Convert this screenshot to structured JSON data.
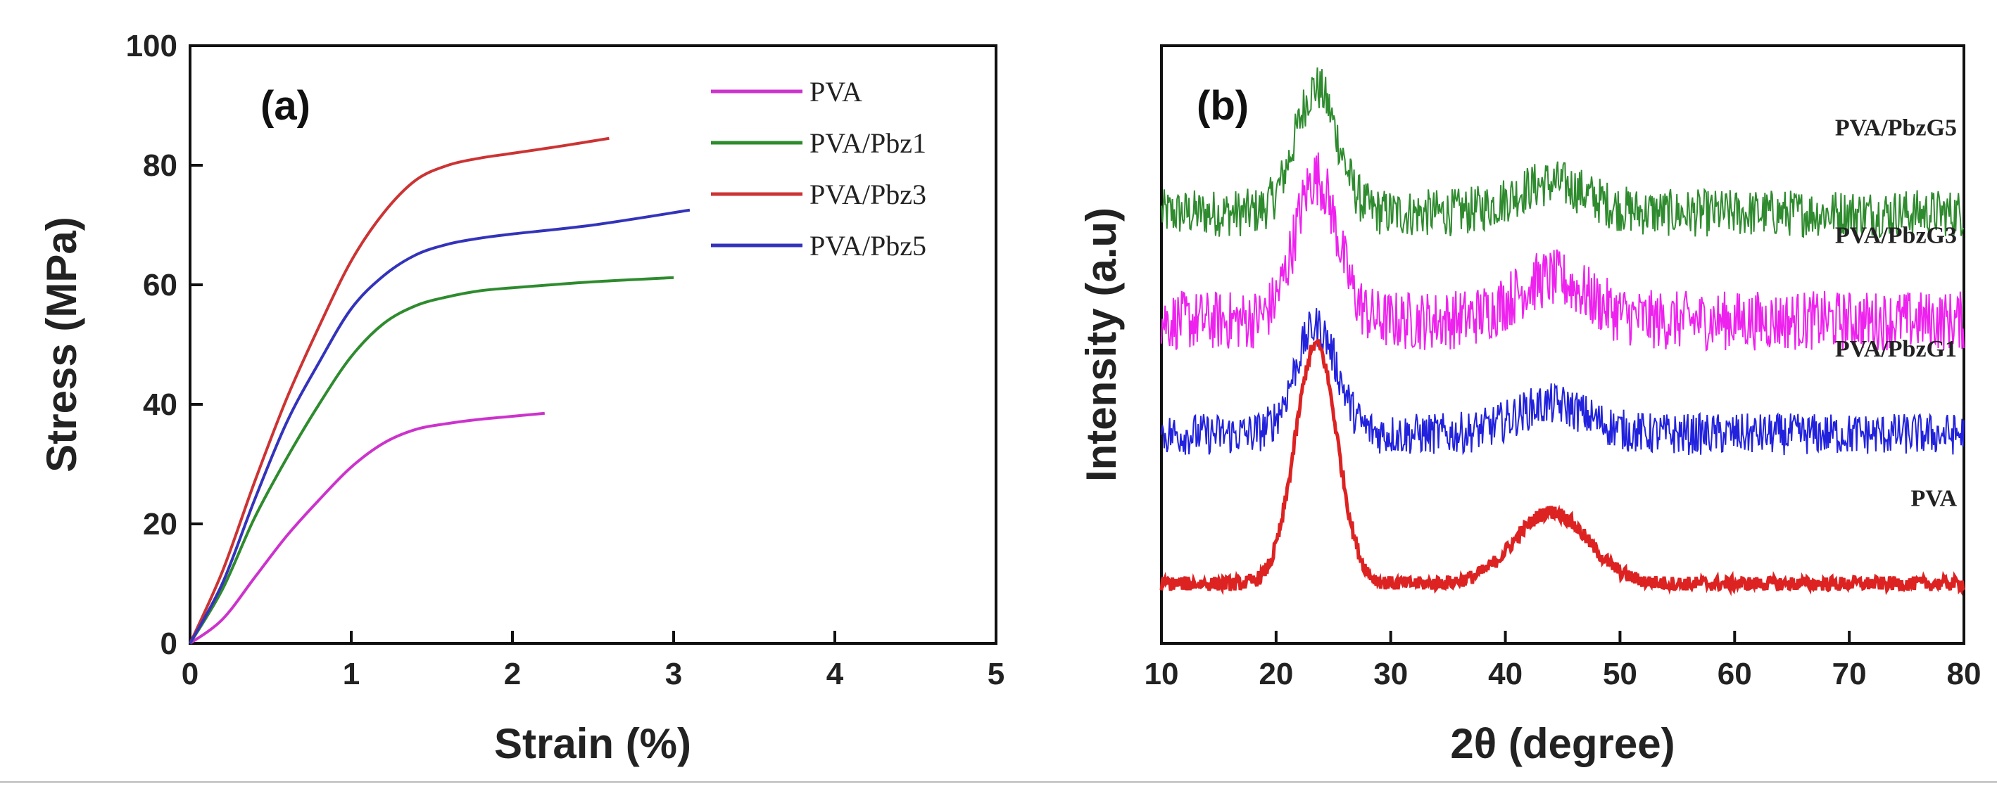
{
  "chart_data": [
    {
      "type": "line",
      "panel_label": "(a)",
      "xlabel": "Strain (%)",
      "ylabel": "Stress (MPa)",
      "xlim": [
        0,
        5
      ],
      "ylim": [
        0,
        100
      ],
      "x_ticks": [
        0,
        1,
        2,
        3,
        4,
        5
      ],
      "y_ticks": [
        0,
        20,
        40,
        60,
        80,
        100
      ],
      "grid": false,
      "legend_position": "top-right",
      "series": [
        {
          "name": "PVA",
          "color": "#cc33cc",
          "x": [
            0,
            0.2,
            0.4,
            0.6,
            0.8,
            1.0,
            1.2,
            1.4,
            1.6,
            1.8,
            2.0,
            2.2
          ],
          "y": [
            0,
            4,
            11,
            18,
            24,
            29.5,
            33.5,
            35.8,
            36.8,
            37.5,
            38.0,
            38.5
          ]
        },
        {
          "name": "PVA/Pbz1",
          "color": "#2e8b2e",
          "x": [
            0,
            0.2,
            0.4,
            0.6,
            0.8,
            1.0,
            1.2,
            1.4,
            1.6,
            1.8,
            2.0,
            2.5,
            3.0
          ],
          "y": [
            0,
            9,
            21,
            31,
            40,
            48,
            53.5,
            56.5,
            58,
            59,
            59.5,
            60.5,
            61.2
          ]
        },
        {
          "name": "PVA/Pbz3",
          "color": "#cc3333",
          "x": [
            0,
            0.2,
            0.4,
            0.6,
            0.8,
            1.0,
            1.2,
            1.4,
            1.6,
            1.8,
            2.0,
            2.3,
            2.6
          ],
          "y": [
            0,
            12,
            27,
            41,
            53,
            64,
            72,
            77.5,
            80,
            81.2,
            82,
            83.2,
            84.5
          ]
        },
        {
          "name": "PVA/Pbz5",
          "color": "#3333bb",
          "x": [
            0,
            0.2,
            0.4,
            0.6,
            0.8,
            1.0,
            1.2,
            1.4,
            1.6,
            1.8,
            2.0,
            2.5,
            3.1
          ],
          "y": [
            0,
            10,
            24,
            37,
            47,
            56,
            61.5,
            65,
            66.8,
            67.8,
            68.5,
            70,
            72.5
          ]
        }
      ]
    },
    {
      "type": "line",
      "panel_label": "(b)",
      "xlabel": "2θ (degree)",
      "ylabel": "Intensity (a.u)",
      "xlim": [
        10,
        80
      ],
      "ylim": [
        0,
        100
      ],
      "x_ticks": [
        10,
        20,
        30,
        40,
        50,
        60,
        70,
        80
      ],
      "grid": false,
      "series": [
        {
          "name": "PVA/PbzG5",
          "color": "#2e8b2e",
          "baseline": 72,
          "peak1_height": 21,
          "peak2_height": 5,
          "noise": 4
        },
        {
          "name": "PVA/PbzG3",
          "color": "#ee22ee",
          "baseline": 54,
          "peak1_height": 24,
          "peak2_height": 7,
          "noise": 5
        },
        {
          "name": "PVA/PbzG1",
          "color": "#2222dd",
          "baseline": 35,
          "peak1_height": 18,
          "peak2_height": 5,
          "noise": 3.5
        },
        {
          "name": "PVA",
          "color": "#dd2222",
          "baseline": 10,
          "peak1_height": 40,
          "peak2_height": 12,
          "noise": 1.2
        }
      ]
    }
  ]
}
